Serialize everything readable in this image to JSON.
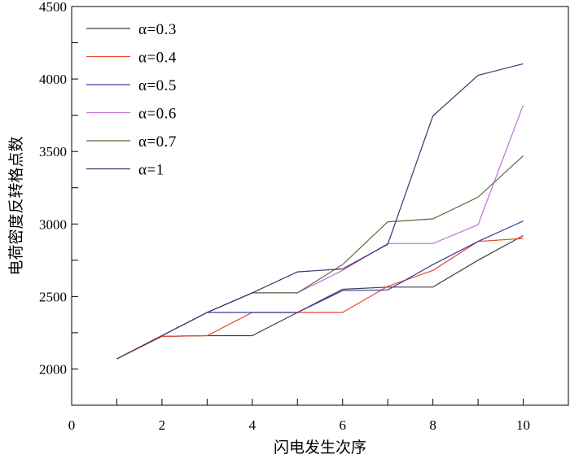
{
  "chart_data": {
    "type": "line",
    "title": "",
    "xlabel": "闪电发生次序",
    "ylabel": "电荷密度反转格点数",
    "xlim": [
      0,
      11
    ],
    "ylim": [
      1750,
      4500
    ],
    "xticks": [
      0,
      2,
      4,
      6,
      8,
      10
    ],
    "yticks": [
      2000,
      2500,
      3000,
      3500,
      4000,
      4500
    ],
    "legend_position": "top-left",
    "x": [
      1,
      2,
      3,
      4,
      5,
      6,
      7,
      8,
      9,
      10
    ],
    "series": [
      {
        "name": "α=0.3",
        "color": "#404040",
        "values": [
          2070,
          2225,
          2230,
          2230,
          2390,
          2550,
          2565,
          2565,
          2750,
          2920
        ]
      },
      {
        "name": "α=0.4",
        "color": "#e8482a",
        "values": [
          2070,
          2225,
          2230,
          2390,
          2390,
          2390,
          2570,
          2680,
          2880,
          2900
        ]
      },
      {
        "name": "α=0.5",
        "color": "#3a3aa8",
        "values": [
          2070,
          2230,
          2390,
          2390,
          2390,
          2540,
          2545,
          2720,
          2880,
          3020
        ]
      },
      {
        "name": "α=0.6",
        "color": "#c070d8",
        "values": [
          2070,
          2230,
          2390,
          2525,
          2525,
          2680,
          2865,
          2865,
          2995,
          3820
        ]
      },
      {
        "name": "α=0.7",
        "color": "#5a6b3a",
        "values": [
          2070,
          2230,
          2390,
          2525,
          2525,
          2720,
          3015,
          3035,
          3185,
          3470
        ]
      },
      {
        "name": "α=1",
        "color": "#4b2d6e",
        "values": [
          2070,
          2230,
          2390,
          2525,
          2670,
          2690,
          2860,
          3745,
          4025,
          4105
        ]
      }
    ]
  }
}
